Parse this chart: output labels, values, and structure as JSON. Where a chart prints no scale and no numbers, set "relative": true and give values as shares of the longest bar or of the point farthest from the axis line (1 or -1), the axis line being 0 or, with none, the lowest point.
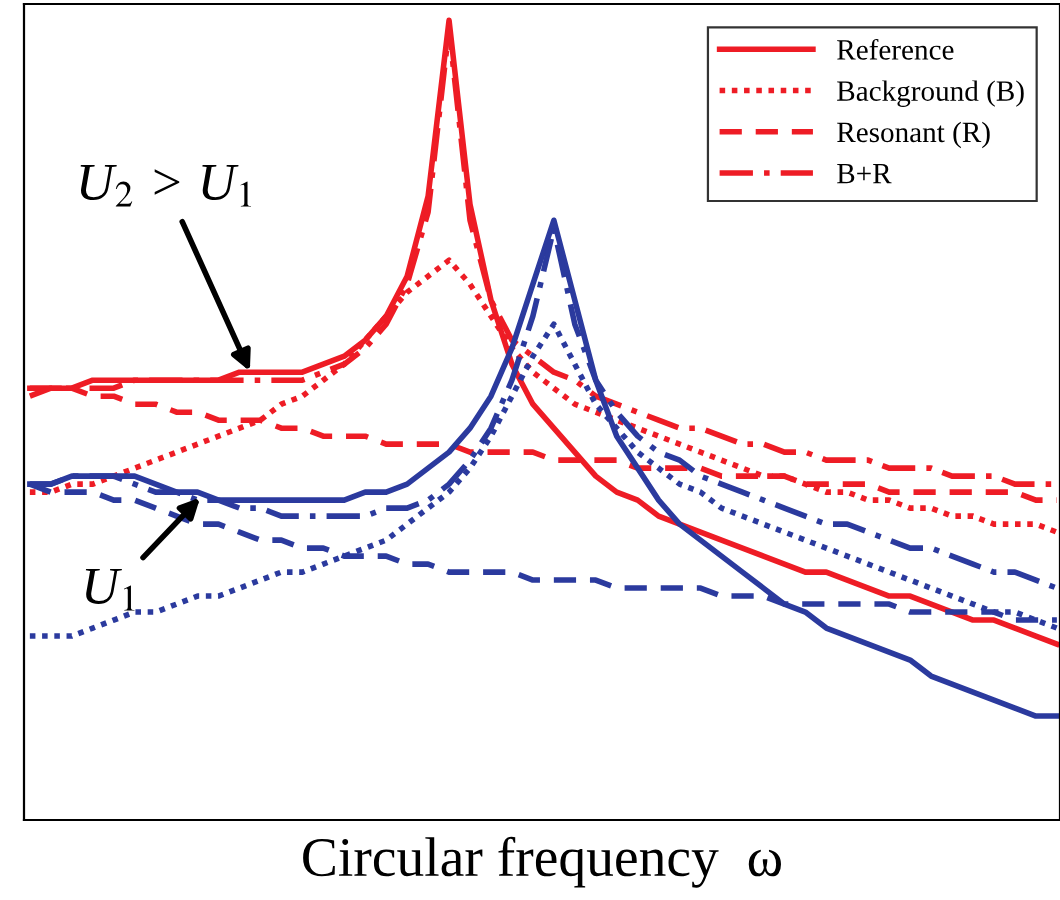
{
  "chart_data": {
    "type": "line",
    "relative": true,
    "xlabel": "Circular frequency  ω",
    "legend": "top right",
    "tick_labels": false,
    "grid": false,
    "categories": [
      null,
      null,
      null,
      null,
      null,
      null,
      null,
      null,
      null,
      null,
      null,
      null,
      null,
      null,
      null,
      null,
      null,
      null,
      null,
      null,
      null,
      null,
      null,
      null,
      null,
      null,
      null,
      null,
      null,
      null,
      null,
      null,
      null,
      null,
      null,
      null,
      null,
      null,
      null,
      null,
      null,
      null,
      null,
      null,
      null,
      null,
      null,
      null,
      null,
      null
    ],
    "annotations": [
      "U$_{2}$ > U$_{1}$",
      "U$_{1}$"
    ],
    "series": [
      {
        "name": "Reference",
        "color": "#ee1c25",
        "line_style": "solid",
        "values": [
          0.54,
          0.54,
          0.54,
          0.55,
          0.55,
          0.55,
          0.55,
          0.55,
          0.55,
          0.55,
          0.56,
          0.56,
          0.56,
          0.56,
          0.57,
          0.58,
          0.6,
          0.63,
          0.68,
          0.78,
          1.0,
          0.77,
          0.65,
          0.57,
          0.52,
          0.49,
          0.46,
          0.43,
          0.41,
          0.4,
          0.38,
          0.37,
          0.36,
          0.35,
          0.34,
          0.33,
          0.32,
          0.31,
          0.31,
          0.3,
          0.29,
          0.28,
          0.28,
          0.27,
          0.26,
          0.25,
          0.25,
          0.24,
          0.23,
          0.22
        ]
      },
      {
        "name": "Background (B)",
        "color": "#ee1c25",
        "line_style": "dotted",
        "values": [
          0.41,
          0.41,
          0.42,
          0.42,
          0.43,
          0.44,
          0.45,
          0.46,
          0.47,
          0.48,
          0.49,
          0.5,
          0.52,
          0.53,
          0.55,
          0.57,
          0.6,
          0.63,
          0.66,
          0.68,
          0.7,
          0.67,
          0.63,
          0.59,
          0.56,
          0.54,
          0.52,
          0.51,
          0.5,
          0.49,
          0.48,
          0.47,
          0.46,
          0.45,
          0.44,
          0.43,
          0.43,
          0.42,
          0.41,
          0.41,
          0.4,
          0.4,
          0.39,
          0.39,
          0.38,
          0.38,
          0.37,
          0.37,
          0.37,
          0.36
        ]
      },
      {
        "name": "Resonant (R)",
        "color": "#ee1c25",
        "line_style": "dashed",
        "values": [
          0.54,
          0.54,
          0.54,
          0.53,
          0.53,
          0.52,
          0.52,
          0.51,
          0.51,
          0.5,
          0.5,
          0.5,
          0.49,
          0.49,
          0.48,
          0.48,
          0.48,
          0.47,
          0.47,
          0.47,
          0.47,
          0.46,
          0.46,
          0.46,
          0.46,
          0.45,
          0.45,
          0.45,
          0.45,
          0.44,
          0.44,
          0.44,
          0.44,
          0.43,
          0.43,
          0.43,
          0.43,
          0.42,
          0.42,
          0.42,
          0.42,
          0.41,
          0.41,
          0.41,
          0.41,
          0.41,
          0.41,
          0.41,
          0.4,
          0.4
        ]
      },
      {
        "name": "B+R",
        "color": "#ee1c25",
        "line_style": "dashdot",
        "values": [
          0.53,
          0.54,
          0.54,
          0.54,
          0.54,
          0.55,
          0.55,
          0.55,
          0.55,
          0.55,
          0.55,
          0.55,
          0.55,
          0.55,
          0.56,
          0.57,
          0.59,
          0.62,
          0.67,
          0.76,
          0.99,
          0.75,
          0.65,
          0.6,
          0.58,
          0.56,
          0.55,
          0.53,
          0.52,
          0.51,
          0.5,
          0.49,
          0.49,
          0.48,
          0.47,
          0.47,
          0.46,
          0.46,
          0.45,
          0.45,
          0.45,
          0.44,
          0.44,
          0.44,
          0.43,
          0.43,
          0.43,
          0.42,
          0.42,
          0.42
        ]
      },
      {
        "color": "#2b3a9e",
        "line_style": "solid",
        "values": [
          0.42,
          0.42,
          0.43,
          0.43,
          0.43,
          0.43,
          0.42,
          0.41,
          0.41,
          0.4,
          0.4,
          0.4,
          0.4,
          0.4,
          0.4,
          0.4,
          0.41,
          0.41,
          0.42,
          0.44,
          0.46,
          0.49,
          0.53,
          0.59,
          0.67,
          0.75,
          0.65,
          0.55,
          0.48,
          0.44,
          0.4,
          0.37,
          0.35,
          0.33,
          0.31,
          0.29,
          0.27,
          0.26,
          0.24,
          0.23,
          0.22,
          0.21,
          0.2,
          0.18,
          0.17,
          0.16,
          0.15,
          0.14,
          0.13,
          0.13
        ]
      },
      {
        "color": "#2b3a9e",
        "line_style": "dotted",
        "values": [
          0.23,
          0.23,
          0.23,
          0.24,
          0.25,
          0.26,
          0.26,
          0.27,
          0.28,
          0.28,
          0.29,
          0.3,
          0.31,
          0.31,
          0.32,
          0.33,
          0.34,
          0.35,
          0.37,
          0.39,
          0.41,
          0.44,
          0.48,
          0.53,
          0.58,
          0.62,
          0.57,
          0.52,
          0.49,
          0.46,
          0.44,
          0.42,
          0.41,
          0.39,
          0.38,
          0.37,
          0.36,
          0.35,
          0.34,
          0.33,
          0.32,
          0.31,
          0.3,
          0.29,
          0.28,
          0.27,
          0.26,
          0.26,
          0.25,
          0.24
        ]
      },
      {
        "color": "#2b3a9e",
        "line_style": "dashed",
        "values": [
          0.42,
          0.41,
          0.41,
          0.41,
          0.4,
          0.4,
          0.39,
          0.38,
          0.37,
          0.37,
          0.36,
          0.35,
          0.35,
          0.34,
          0.34,
          0.33,
          0.33,
          0.33,
          0.32,
          0.32,
          0.31,
          0.31,
          0.31,
          0.31,
          0.3,
          0.3,
          0.3,
          0.3,
          0.29,
          0.29,
          0.29,
          0.29,
          0.29,
          0.28,
          0.28,
          0.28,
          0.27,
          0.27,
          0.27,
          0.27,
          0.27,
          0.27,
          0.26,
          0.26,
          0.26,
          0.26,
          0.26,
          0.25,
          0.25,
          0.25
        ]
      },
      {
        "color": "#2b3a9e",
        "line_style": "dashdot",
        "values": [
          0.42,
          0.42,
          0.43,
          0.43,
          0.43,
          0.42,
          0.41,
          0.41,
          0.4,
          0.4,
          0.39,
          0.39,
          0.38,
          0.38,
          0.38,
          0.38,
          0.38,
          0.39,
          0.39,
          0.4,
          0.42,
          0.45,
          0.49,
          0.55,
          0.63,
          0.74,
          0.62,
          0.55,
          0.51,
          0.48,
          0.46,
          0.45,
          0.43,
          0.42,
          0.41,
          0.4,
          0.39,
          0.38,
          0.37,
          0.37,
          0.36,
          0.35,
          0.34,
          0.34,
          0.33,
          0.32,
          0.31,
          0.31,
          0.3,
          0.29
        ]
      }
    ]
  }
}
